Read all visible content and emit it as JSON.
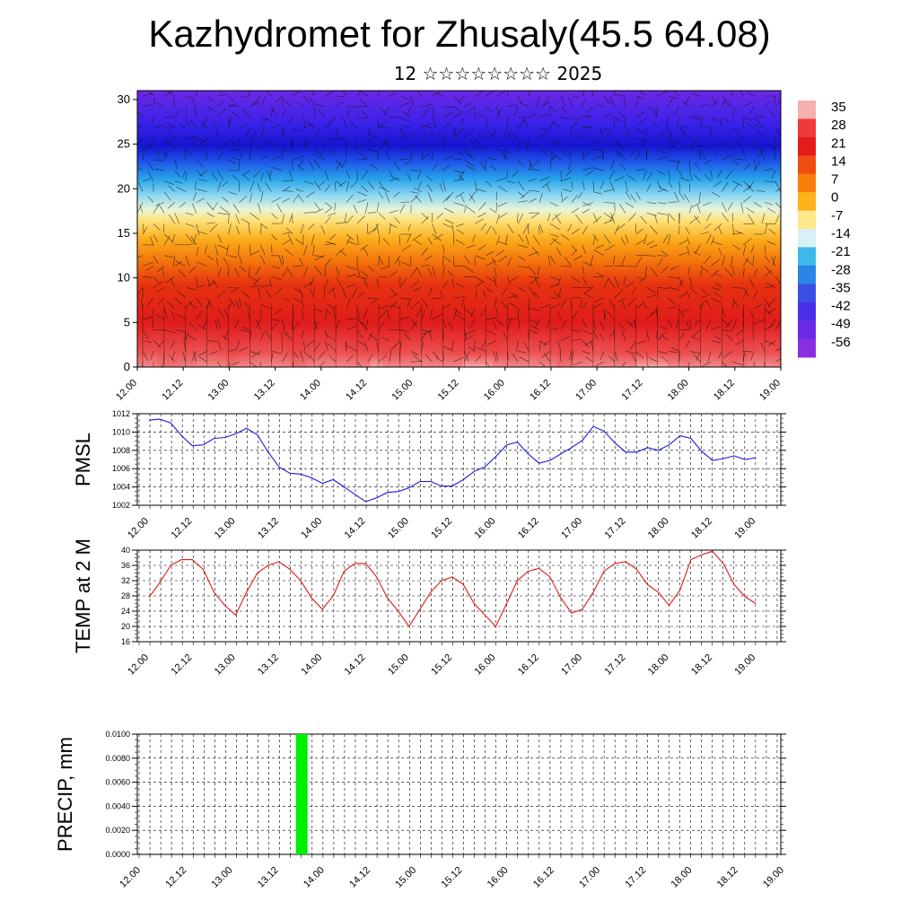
{
  "title": "Kazhydromet for Zhusaly(45.5 64.08)",
  "subtitle": "12 ☆☆☆☆☆☆☆☆ 2025",
  "time_labels": [
    "12.00",
    "12.12",
    "13.00",
    "13.12",
    "14.00",
    "14.12",
    "15.00",
    "15.12",
    "16.00",
    "16.12",
    "17.00",
    "17.12",
    "18.00",
    "18.12",
    "19.00"
  ],
  "chart_data": [
    {
      "type": "heatmap",
      "name": "cross-section",
      "yticks": [
        0,
        5,
        10,
        15,
        20,
        25,
        30
      ],
      "ylim": [
        0,
        31
      ],
      "colorbar": {
        "labels": [
          "35",
          "28",
          "21",
          "14",
          "7",
          "0",
          "-7",
          "-14",
          "-21",
          "-28",
          "-35",
          "-42",
          "-49",
          "-56"
        ],
        "colors": [
          "#f7b0b0",
          "#ee3a3a",
          "#e31b1b",
          "#f04d10",
          "#f87d0a",
          "#fcb21a",
          "#fde98a",
          "#d8f0f6",
          "#3fb8ec",
          "#2a86e6",
          "#3b4fe6",
          "#4a2fe6",
          "#6a2ae4",
          "#8a2fe0"
        ]
      }
    },
    {
      "type": "line",
      "ylabel": "PMSL",
      "ylim": [
        1002,
        1012
      ],
      "yticks": [
        "1012",
        "1010",
        "1008",
        "1006",
        "1004",
        "1002"
      ],
      "color": "#1a1ae0",
      "x": [
        0,
        0.25,
        0.5,
        0.75,
        1,
        1.25,
        1.5,
        1.75,
        2,
        2.25,
        2.5,
        2.75,
        3,
        3.25,
        3.5,
        3.75,
        4,
        4.25,
        4.5,
        4.75,
        5,
        5.25,
        5.5,
        5.75,
        6,
        6.25,
        6.5,
        6.75,
        7,
        7.25,
        7.5,
        7.75,
        8,
        8.25,
        8.5,
        8.75,
        9,
        9.25,
        9.5,
        9.75,
        10,
        10.25,
        10.5,
        10.75,
        11,
        11.25,
        11.5,
        11.75,
        12,
        12.25,
        12.5,
        12.75,
        13,
        13.25,
        13.5,
        13.75,
        14
      ],
      "values": [
        1011.3,
        1011.4,
        1011.0,
        1009.6,
        1008.5,
        1008.6,
        1009.3,
        1009.4,
        1009.8,
        1010.4,
        1009.7,
        1007.8,
        1006.2,
        1005.5,
        1005.4,
        1005.0,
        1004.4,
        1004.8,
        1004.0,
        1003.2,
        1002.4,
        1002.8,
        1003.4,
        1003.5,
        1003.9,
        1004.6,
        1004.6,
        1004.1,
        1004.1,
        1004.8,
        1005.7,
        1006.2,
        1007.3,
        1008.6,
        1008.9,
        1007.6,
        1006.6,
        1006.9,
        1007.6,
        1008.3,
        1009.1,
        1010.6,
        1010.1,
        1008.8,
        1007.8,
        1007.8,
        1008.3,
        1008.0,
        1008.6,
        1009.6,
        1009.3,
        1007.9,
        1006.9,
        1007.1,
        1007.4,
        1007.0,
        1007.2
      ]
    },
    {
      "type": "line",
      "ylabel": "TEMP at 2 M",
      "ylim": [
        16,
        40
      ],
      "yticks": [
        "40",
        "36",
        "32",
        "28",
        "24",
        "20",
        "16"
      ],
      "color": "#e01a1a",
      "x": [
        0,
        0.25,
        0.5,
        0.75,
        1,
        1.25,
        1.5,
        1.75,
        2,
        2.25,
        2.5,
        2.75,
        3,
        3.25,
        3.5,
        3.75,
        4,
        4.25,
        4.5,
        4.75,
        5,
        5.25,
        5.5,
        5.75,
        6,
        6.25,
        6.5,
        6.75,
        7,
        7.25,
        7.5,
        7.75,
        8,
        8.25,
        8.5,
        8.75,
        9,
        9.25,
        9.5,
        9.75,
        10,
        10.25,
        10.5,
        10.75,
        11,
        11.25,
        11.5,
        11.75,
        12,
        12.25,
        12.5,
        12.75,
        13,
        13.25,
        13.5,
        13.75,
        14
      ],
      "values": [
        27.6,
        31.5,
        36.0,
        37.5,
        37.5,
        35.0,
        29.0,
        25.5,
        23.0,
        29.0,
        34.0,
        36.0,
        37.0,
        35.0,
        32.0,
        27.5,
        24.5,
        28.0,
        34.5,
        36.5,
        36.5,
        33.0,
        27.5,
        24.0,
        20.0,
        24.5,
        29.0,
        32.0,
        33.0,
        31.0,
        26.0,
        23.0,
        20.0,
        26.0,
        32.0,
        34.5,
        35.2,
        33.0,
        27.5,
        23.5,
        24.5,
        29.0,
        34.5,
        36.5,
        37.0,
        35.0,
        31.0,
        29.0,
        25.5,
        29.5,
        37.5,
        38.8,
        39.7,
        36.5,
        31.0,
        27.8,
        26.0
      ]
    },
    {
      "type": "bar",
      "ylabel": "PRECIP, mm",
      "ylim": [
        0,
        0.01
      ],
      "yticks": [
        "0.0100",
        "0.0080",
        "0.0060",
        "0.0040",
        "0.0020",
        "0.0000"
      ],
      "color": "#00ee00",
      "bars": [
        {
          "x": 3.5,
          "value": 0.01
        }
      ]
    }
  ]
}
